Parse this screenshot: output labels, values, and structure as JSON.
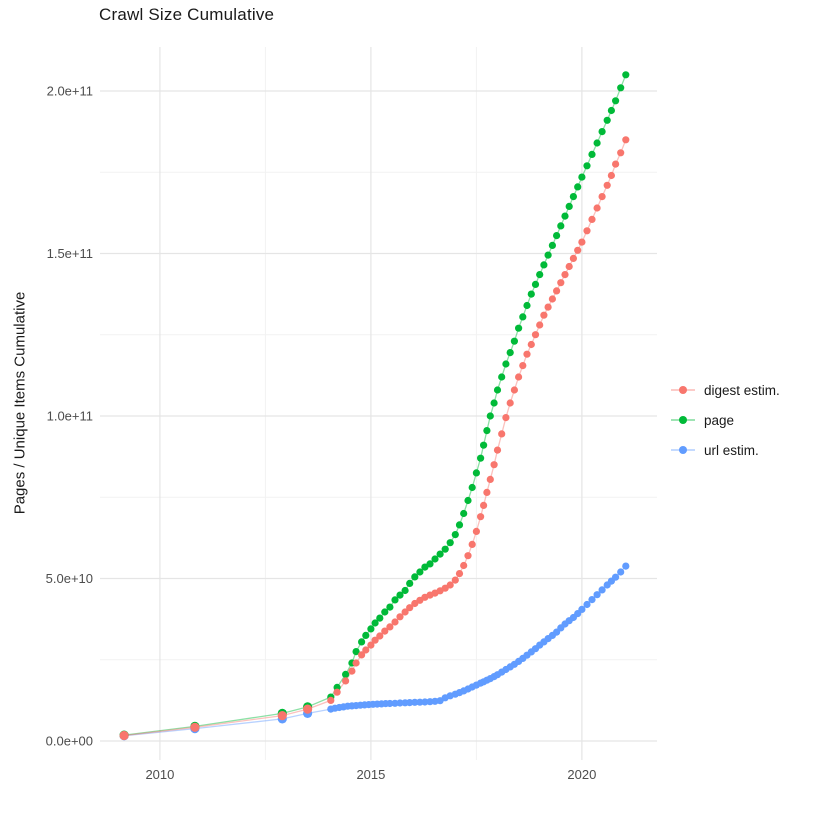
{
  "page": {
    "title": "Crawl Size Cumulative"
  },
  "chart_data": {
    "type": "line",
    "title": "Crawl Size Cumulative",
    "xlabel": "",
    "ylabel": "Pages / Unique Items Cumulative",
    "y_unit": "billions (1e9) of pages / unique items",
    "grid": true,
    "legend_position": "right",
    "x_axis": {
      "range": [
        2008.6,
        2021.8
      ],
      "ticks": [
        {
          "value": 2010,
          "label": "2010"
        },
        {
          "value": 2015,
          "label": "2015"
        },
        {
          "value": 2020,
          "label": "2020"
        }
      ],
      "minor": [
        2012.5,
        2017.5
      ]
    },
    "y_axis": {
      "range_billions": [
        0,
        213
      ],
      "ticks": [
        {
          "value": 0,
          "label": "0.0e+00"
        },
        {
          "value": 50,
          "label": "5.0e+10"
        },
        {
          "value": 100,
          "label": "1.0e+11"
        },
        {
          "value": 150,
          "label": "1.5e+11"
        },
        {
          "value": 200,
          "label": "2.0e+11"
        }
      ],
      "minor": [
        25,
        75,
        125,
        175
      ]
    },
    "series": [
      {
        "name": "digest estim.",
        "color": "#F8766D",
        "points_year_billion": [
          [
            2009.15,
            1.7
          ],
          [
            2010.83,
            4.2
          ],
          [
            2012.9,
            7.8
          ],
          [
            2013.5,
            9.8
          ],
          [
            2014.05,
            12.5
          ],
          [
            2014.2,
            15
          ],
          [
            2014.4,
            18.5
          ],
          [
            2014.55,
            21.5
          ],
          [
            2014.65,
            24
          ],
          [
            2014.78,
            26.5
          ],
          [
            2014.88,
            28
          ],
          [
            2015.0,
            29.5
          ],
          [
            2015.1,
            31
          ],
          [
            2015.21,
            32.3
          ],
          [
            2015.33,
            33.8
          ],
          [
            2015.45,
            35.1
          ],
          [
            2015.57,
            36.6
          ],
          [
            2015.69,
            38.2
          ],
          [
            2015.81,
            39.7
          ],
          [
            2015.92,
            41
          ],
          [
            2016.04,
            42.3
          ],
          [
            2016.16,
            43.3
          ],
          [
            2016.28,
            44.2
          ],
          [
            2016.4,
            44.9
          ],
          [
            2016.52,
            45.5
          ],
          [
            2016.64,
            46.2
          ],
          [
            2016.76,
            47
          ],
          [
            2016.88,
            48
          ],
          [
            2017.0,
            49.5
          ],
          [
            2017.1,
            51.5
          ],
          [
            2017.2,
            54
          ],
          [
            2017.3,
            57
          ],
          [
            2017.4,
            60.5
          ],
          [
            2017.5,
            64.5
          ],
          [
            2017.6,
            69
          ],
          [
            2017.67,
            72.5
          ],
          [
            2017.75,
            76.5
          ],
          [
            2017.83,
            80.5
          ],
          [
            2017.92,
            85
          ],
          [
            2018.0,
            89.5
          ],
          [
            2018.1,
            94.5
          ],
          [
            2018.2,
            99.5
          ],
          [
            2018.3,
            104
          ],
          [
            2018.4,
            108
          ],
          [
            2018.5,
            112
          ],
          [
            2018.6,
            115.5
          ],
          [
            2018.7,
            119
          ],
          [
            2018.8,
            122
          ],
          [
            2018.9,
            125
          ],
          [
            2019.0,
            128
          ],
          [
            2019.1,
            131
          ],
          [
            2019.2,
            133.5
          ],
          [
            2019.3,
            136
          ],
          [
            2019.4,
            138.5
          ],
          [
            2019.5,
            141
          ],
          [
            2019.6,
            143.5
          ],
          [
            2019.7,
            146
          ],
          [
            2019.8,
            148.5
          ],
          [
            2019.9,
            151
          ],
          [
            2020.0,
            153.5
          ],
          [
            2020.12,
            157
          ],
          [
            2020.24,
            160.5
          ],
          [
            2020.36,
            164
          ],
          [
            2020.48,
            167.5
          ],
          [
            2020.6,
            171
          ],
          [
            2020.7,
            174
          ],
          [
            2020.8,
            177.5
          ],
          [
            2020.92,
            181
          ],
          [
            2021.04,
            185
          ]
        ]
      },
      {
        "name": "page",
        "color": "#00BA38",
        "points_year_billion": [
          [
            2009.15,
            1.8
          ],
          [
            2010.83,
            4.5
          ],
          [
            2012.9,
            8.5
          ],
          [
            2013.5,
            10.5
          ],
          [
            2014.05,
            13.5
          ],
          [
            2014.2,
            16.5
          ],
          [
            2014.4,
            20.5
          ],
          [
            2014.55,
            24
          ],
          [
            2014.65,
            27.5
          ],
          [
            2014.78,
            30.5
          ],
          [
            2014.88,
            32.5
          ],
          [
            2015.0,
            34.5
          ],
          [
            2015.1,
            36.3
          ],
          [
            2015.21,
            37.8
          ],
          [
            2015.33,
            39.7
          ],
          [
            2015.45,
            41.2
          ],
          [
            2015.57,
            43.4
          ],
          [
            2015.69,
            44.9
          ],
          [
            2015.81,
            46.3
          ],
          [
            2015.92,
            48.5
          ],
          [
            2016.04,
            50.5
          ],
          [
            2016.16,
            52
          ],
          [
            2016.28,
            53.5
          ],
          [
            2016.4,
            54.5
          ],
          [
            2016.52,
            56
          ],
          [
            2016.64,
            57.5
          ],
          [
            2016.76,
            59
          ],
          [
            2016.88,
            61
          ],
          [
            2017.0,
            63.5
          ],
          [
            2017.1,
            66.5
          ],
          [
            2017.2,
            70
          ],
          [
            2017.3,
            74
          ],
          [
            2017.4,
            78
          ],
          [
            2017.5,
            82.5
          ],
          [
            2017.6,
            87
          ],
          [
            2017.67,
            91
          ],
          [
            2017.75,
            95.5
          ],
          [
            2017.83,
            100
          ],
          [
            2017.92,
            104
          ],
          [
            2018.0,
            108
          ],
          [
            2018.1,
            112
          ],
          [
            2018.2,
            116
          ],
          [
            2018.3,
            119.5
          ],
          [
            2018.4,
            123
          ],
          [
            2018.5,
            127
          ],
          [
            2018.6,
            130.5
          ],
          [
            2018.7,
            134
          ],
          [
            2018.8,
            137.5
          ],
          [
            2018.9,
            140.5
          ],
          [
            2019.0,
            143.5
          ],
          [
            2019.1,
            146.5
          ],
          [
            2019.2,
            149.5
          ],
          [
            2019.3,
            152.5
          ],
          [
            2019.4,
            155.5
          ],
          [
            2019.5,
            158.5
          ],
          [
            2019.6,
            161.5
          ],
          [
            2019.7,
            164.5
          ],
          [
            2019.8,
            167.5
          ],
          [
            2019.9,
            170.5
          ],
          [
            2020.0,
            173.5
          ],
          [
            2020.12,
            177
          ],
          [
            2020.24,
            180.5
          ],
          [
            2020.36,
            184
          ],
          [
            2020.48,
            187.5
          ],
          [
            2020.6,
            191
          ],
          [
            2020.7,
            194
          ],
          [
            2020.8,
            197
          ],
          [
            2020.92,
            201
          ],
          [
            2021.04,
            205
          ]
        ]
      },
      {
        "name": "url estim.",
        "color": "#619CFF",
        "points_year_billion": [
          [
            2009.15,
            1.6
          ],
          [
            2010.83,
            3.8
          ],
          [
            2012.9,
            6.8
          ],
          [
            2013.5,
            8.5
          ],
          [
            2014.05,
            9.8
          ],
          [
            2014.15,
            10.1
          ],
          [
            2014.25,
            10.3
          ],
          [
            2014.35,
            10.5
          ],
          [
            2014.45,
            10.7
          ],
          [
            2014.55,
            10.8
          ],
          [
            2014.65,
            10.9
          ],
          [
            2014.75,
            11
          ],
          [
            2014.85,
            11.1
          ],
          [
            2014.95,
            11.2
          ],
          [
            2015.05,
            11.3
          ],
          [
            2015.15,
            11.35
          ],
          [
            2015.25,
            11.4
          ],
          [
            2015.35,
            11.5
          ],
          [
            2015.45,
            11.55
          ],
          [
            2015.57,
            11.6
          ],
          [
            2015.69,
            11.7
          ],
          [
            2015.81,
            11.75
          ],
          [
            2015.92,
            11.8
          ],
          [
            2016.04,
            11.9
          ],
          [
            2016.16,
            11.95
          ],
          [
            2016.28,
            12
          ],
          [
            2016.4,
            12.1
          ],
          [
            2016.52,
            12.2
          ],
          [
            2016.64,
            12.4
          ],
          [
            2016.76,
            13.3
          ],
          [
            2016.88,
            13.9
          ],
          [
            2017.0,
            14.4
          ],
          [
            2017.1,
            14.9
          ],
          [
            2017.2,
            15.4
          ],
          [
            2017.3,
            16
          ],
          [
            2017.4,
            16.6
          ],
          [
            2017.5,
            17.2
          ],
          [
            2017.6,
            17.8
          ],
          [
            2017.67,
            18.2
          ],
          [
            2017.75,
            18.7
          ],
          [
            2017.83,
            19.2
          ],
          [
            2017.92,
            19.8
          ],
          [
            2018.0,
            20.4
          ],
          [
            2018.1,
            21.2
          ],
          [
            2018.2,
            22
          ],
          [
            2018.3,
            22.8
          ],
          [
            2018.4,
            23.6
          ],
          [
            2018.5,
            24.5
          ],
          [
            2018.6,
            25.4
          ],
          [
            2018.7,
            26.4
          ],
          [
            2018.8,
            27.4
          ],
          [
            2018.9,
            28.4
          ],
          [
            2019.0,
            29.5
          ],
          [
            2019.1,
            30.5
          ],
          [
            2019.2,
            31.5
          ],
          [
            2019.3,
            32.5
          ],
          [
            2019.4,
            33.5
          ],
          [
            2019.5,
            34.8
          ],
          [
            2019.6,
            36
          ],
          [
            2019.7,
            37
          ],
          [
            2019.8,
            38
          ],
          [
            2019.9,
            39.2
          ],
          [
            2020.0,
            40.5
          ],
          [
            2020.12,
            42
          ],
          [
            2020.24,
            43.5
          ],
          [
            2020.36,
            45
          ],
          [
            2020.48,
            46.5
          ],
          [
            2020.6,
            48
          ],
          [
            2020.7,
            49.2
          ],
          [
            2020.8,
            50.4
          ],
          [
            2020.92,
            52
          ],
          [
            2021.04,
            53.8
          ]
        ]
      }
    ]
  }
}
